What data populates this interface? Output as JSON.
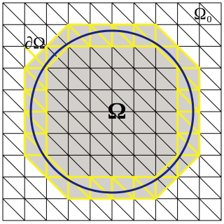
{
  "labels": {
    "background": "Ω₀",
    "boundary": "∂Ω",
    "domain": "Ω"
  }
}
